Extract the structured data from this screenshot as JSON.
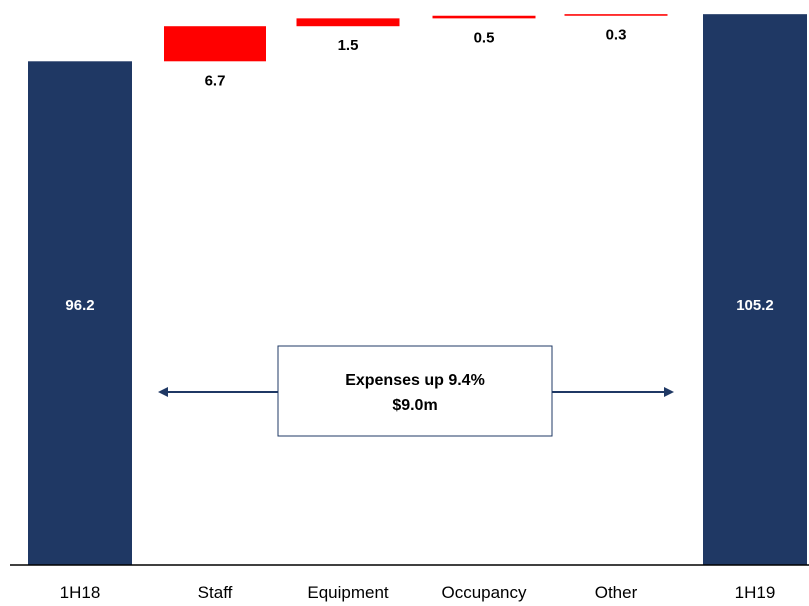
{
  "chart_data": {
    "type": "bar",
    "subtype": "waterfall",
    "categories": [
      "1H18",
      "Staff",
      "Equipment",
      "Occupancy",
      "Other",
      "1H19"
    ],
    "values": [
      96.2,
      6.7,
      1.5,
      0.5,
      0.3,
      105.2
    ],
    "value_labels": [
      "96.2",
      "6.7",
      "1.5",
      "0.5",
      "0.3",
      "105.2"
    ],
    "kinds": [
      "total",
      "increase",
      "increase",
      "increase",
      "increase",
      "total"
    ],
    "annotation": {
      "line1": "Expenses up 9.4%",
      "line2": "$9.0m"
    },
    "colors": {
      "total": "#1f3864",
      "increase": "#ff0000",
      "total_label": "#ffffff",
      "increase_label": "#000000",
      "arrow": "#1f3864",
      "callout_border": "#1f3864",
      "axis": "#000000"
    },
    "ylim": [
      0,
      106
    ],
    "grid": false,
    "legend": "none"
  }
}
